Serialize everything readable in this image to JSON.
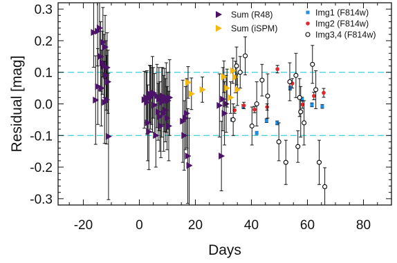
{
  "chart_data": {
    "type": "scatter",
    "xlabel": "Days",
    "ylabel": "Residual [mag]",
    "xlim": [
      -29,
      90
    ],
    "ylim": [
      -0.32,
      0.32
    ],
    "xticks": [
      -20,
      0,
      20,
      40,
      60,
      80
    ],
    "xtick_labels": [
      "-20",
      "0",
      "20",
      "40",
      "60",
      "80"
    ],
    "yticks": [
      -0.3,
      -0.2,
      -0.1,
      0.0,
      0.1,
      0.2,
      0.3
    ],
    "ytick_labels": [
      "-0.3",
      "-0.2",
      "-0.1",
      "0.0",
      "0.1",
      "0.2",
      "0.3"
    ],
    "reference_lines": {
      "values": [
        -0.1,
        0.1
      ],
      "color": "#4fd1dc",
      "style": "dashed"
    },
    "legend_left": [
      {
        "label": "Sum (R48)",
        "series": 0
      },
      {
        "label": "Sum (iSPM)",
        "series": 1
      }
    ],
    "legend_right": [
      {
        "label": "Img1 (F814w)",
        "series": 2
      },
      {
        "label": "Img2 (F814w)",
        "series": 3
      },
      {
        "label": "Img3,4 (F814w)",
        "series": 4
      }
    ],
    "series": [
      {
        "name": "Sum (R48)",
        "marker": "triangle-right",
        "color": "#4b1268",
        "points": [
          [
            -16.3,
            0.226,
            0.11
          ],
          [
            -15.6,
            0.012,
            0.14
          ],
          [
            -14.9,
            0.23,
            0.11
          ],
          [
            -14.8,
            0.055,
            0.12
          ],
          [
            -14.2,
            0.24,
            0.09
          ],
          [
            -13.8,
            0.15,
            0.11
          ],
          [
            -13.6,
            0.05,
            0.12
          ],
          [
            -13.2,
            0.13,
            0.1
          ],
          [
            -13.0,
            0.195,
            0.11
          ],
          [
            -12.6,
            0.12,
            0.1
          ],
          [
            -12.4,
            0.005,
            0.13
          ],
          [
            -12.2,
            0.18,
            0.1
          ],
          [
            -11.9,
            0.09,
            0.11
          ],
          [
            -11.7,
            0.013,
            0.14
          ],
          [
            -11.5,
            0.115,
            0.11
          ],
          [
            -11.2,
            0.07,
            0.1
          ],
          [
            -11.0,
            -0.103,
            0.2
          ],
          [
            1.8,
            0.013,
            0.09
          ],
          [
            2.4,
            0.02,
            0.08
          ],
          [
            2.7,
            0.005,
            0.1
          ],
          [
            3.0,
            -0.06,
            0.12
          ],
          [
            3.4,
            -0.088,
            0.12
          ],
          [
            3.7,
            0.032,
            0.09
          ],
          [
            4.0,
            0.02,
            0.1
          ],
          [
            4.3,
            0.025,
            0.09
          ],
          [
            4.7,
            0.03,
            0.12
          ],
          [
            5.0,
            0.035,
            0.08
          ],
          [
            5.4,
            -0.004,
            0.1
          ],
          [
            5.9,
            -0.1,
            0.1
          ],
          [
            6.3,
            0.025,
            0.1
          ],
          [
            6.7,
            -0.025,
            0.09
          ],
          [
            7.0,
            0.015,
            0.1
          ],
          [
            7.3,
            -0.04,
            0.11
          ],
          [
            7.7,
            -0.07,
            0.1
          ],
          [
            8.0,
            0.005,
            0.11
          ],
          [
            8.3,
            0.025,
            0.09
          ],
          [
            8.7,
            -0.03,
            0.12
          ],
          [
            9.0,
            0.012,
            0.1
          ],
          [
            9.3,
            -0.02,
            0.1
          ],
          [
            9.6,
            0.02,
            0.11
          ],
          [
            9.9,
            -0.045,
            0.1
          ],
          [
            10.2,
            0.01,
            0.09
          ],
          [
            10.5,
            -0.07,
            0.11
          ],
          [
            10.8,
            0.02,
            0.12
          ],
          [
            15.5,
            -0.055,
            0.13
          ],
          [
            16.0,
            -0.1,
            0.11
          ],
          [
            16.5,
            -0.045,
            0.1
          ],
          [
            16.9,
            -0.03,
            0.11
          ],
          [
            17.3,
            -0.165,
            0.15
          ],
          [
            17.8,
            -0.195,
            0.15
          ],
          [
            29.3,
            -0.165,
            0.11
          ],
          [
            28.6,
            -0.005,
            0.1
          ],
          [
            29.8,
            0.015,
            0.1
          ],
          [
            30.4,
            -0.03,
            0.1
          ],
          [
            31.0,
            0.0,
            0.09
          ]
        ]
      },
      {
        "name": "Sum (iSPM)",
        "marker": "triangle-right",
        "color": "#f5b80f",
        "points": [
          [
            17.4,
            0.068,
            0.05
          ],
          [
            18.6,
            0.032,
            0.05
          ],
          [
            22.5,
            0.045,
            0.04
          ],
          [
            30.2,
            0.086,
            0.05
          ],
          [
            31.3,
            0.05,
            0.06
          ],
          [
            32.6,
            0.02,
            0.05
          ],
          [
            33.4,
            0.105,
            0.04
          ],
          [
            34.3,
            0.085,
            0.05
          ],
          [
            35.0,
            0.045,
            0.05
          ]
        ]
      },
      {
        "name": "Img1 (F814w)",
        "marker": "square",
        "color": "#1f8fe8",
        "points": [
          [
            33.1,
            -0.05,
            0.005
          ],
          [
            37.1,
            -0.008,
            0.006
          ],
          [
            41.9,
            -0.092,
            0.005
          ],
          [
            45.4,
            -0.053,
            0.006
          ],
          [
            49.2,
            -0.06,
            0.006
          ],
          [
            53.8,
            0.05,
            0.006
          ],
          [
            58.1,
            0.015,
            0.006
          ],
          [
            61.6,
            -0.003,
            0.006
          ],
          [
            65.3,
            -0.008,
            0.006
          ]
        ]
      },
      {
        "name": "Img2 (F814w)",
        "marker": "circle-filled",
        "color": "#e3262a",
        "points": [
          [
            34.0,
            -0.02,
            0.01
          ],
          [
            37.3,
            -0.005,
            0.01
          ],
          [
            41.1,
            -0.018,
            0.01
          ],
          [
            45.6,
            -0.01,
            0.01
          ],
          [
            49.3,
            0.11,
            0.012
          ],
          [
            54.6,
            0.065,
            0.015
          ],
          [
            58.3,
            -0.002,
            0.012
          ],
          [
            62.3,
            0.025,
            0.012
          ],
          [
            65.8,
            0.035,
            0.014
          ]
        ]
      },
      {
        "name": "Img3,4 (F814w)",
        "marker": "circle-open",
        "color": "#000000",
        "points": [
          [
            33.5,
            -0.05,
            0.05
          ],
          [
            34.7,
            0.12,
            0.06
          ],
          [
            36.0,
            0.1,
            0.05
          ],
          [
            37.8,
            0.152,
            0.06
          ],
          [
            40.2,
            -0.07,
            0.06
          ],
          [
            41.9,
            0.0,
            0.07
          ],
          [
            43.8,
            0.075,
            0.05
          ],
          [
            45.8,
            0.025,
            0.07
          ],
          [
            49.8,
            -0.12,
            0.06
          ],
          [
            52.3,
            -0.185,
            0.07
          ],
          [
            53.7,
            0.07,
            0.06
          ],
          [
            55.9,
            0.09,
            0.07
          ],
          [
            56.6,
            -0.135,
            0.05
          ],
          [
            57.6,
            -0.025,
            0.08
          ],
          [
            58.8,
            -0.06,
            0.07
          ],
          [
            61.8,
            0.125,
            0.06
          ],
          [
            63.0,
            0.045,
            0.06
          ],
          [
            64.2,
            -0.185,
            0.07
          ],
          [
            66.2,
            -0.262,
            0.06
          ],
          [
            57.2,
            0.02,
            0.06
          ]
        ]
      }
    ]
  }
}
